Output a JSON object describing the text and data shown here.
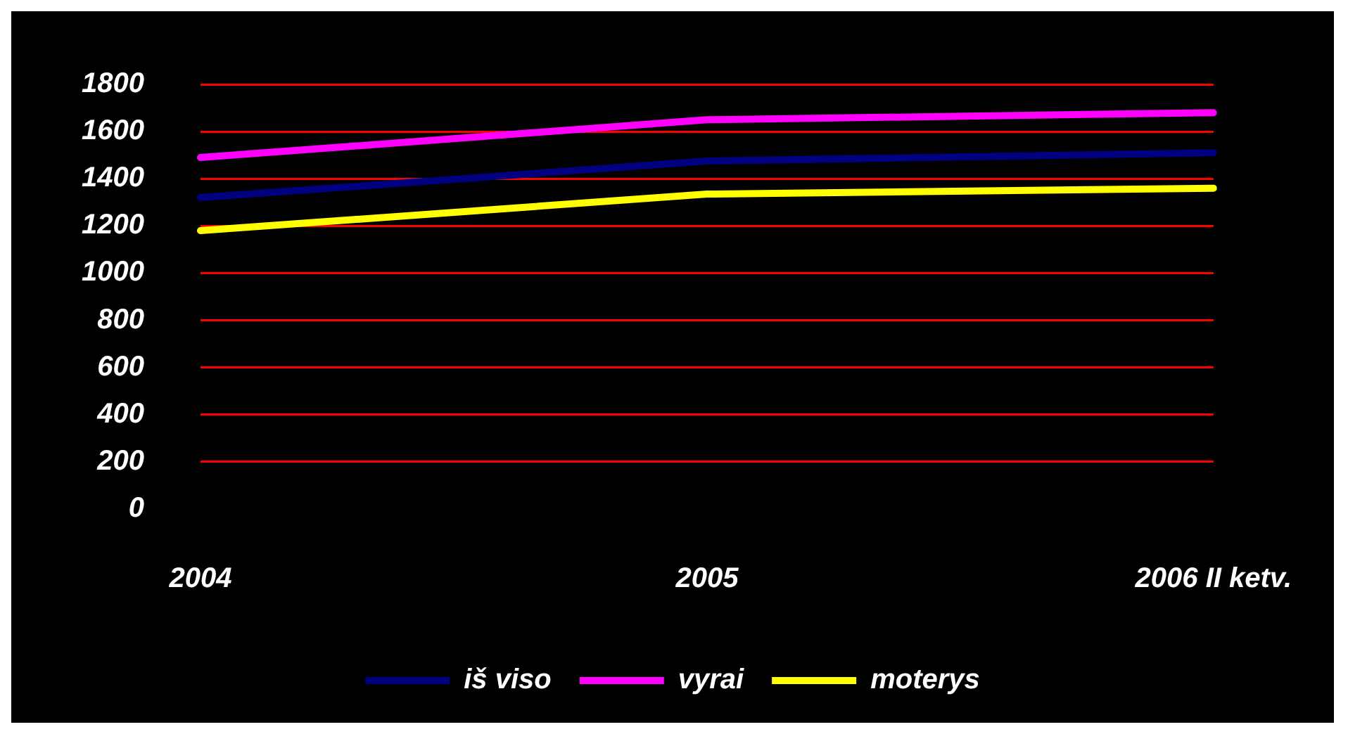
{
  "chart_data": {
    "type": "line",
    "categories": [
      "2004",
      "2005",
      "2006 II ketv."
    ],
    "series": [
      {
        "name": "iš viso",
        "color": "#000080",
        "values": [
          1320,
          1475,
          1510
        ]
      },
      {
        "name": "vyrai",
        "color": "#ff00ff",
        "values": [
          1490,
          1650,
          1680
        ]
      },
      {
        "name": "moterys",
        "color": "#ffff00",
        "values": [
          1180,
          1335,
          1360
        ]
      }
    ],
    "ylim": [
      0,
      1800
    ],
    "yticks": [
      0,
      200,
      400,
      600,
      800,
      1000,
      1200,
      1400,
      1600,
      1800
    ],
    "grid": "y",
    "legend": "bottom",
    "marker": "none",
    "line_style": "solid"
  }
}
